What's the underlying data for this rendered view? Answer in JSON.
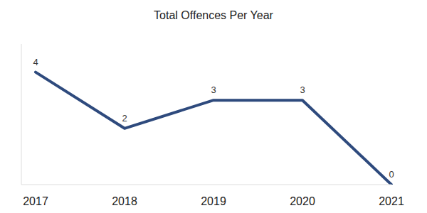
{
  "chart_data": {
    "type": "line",
    "title": "Total Offences Per Year",
    "categories": [
      "2017",
      "2018",
      "2019",
      "2020",
      "2021"
    ],
    "values": [
      4,
      2,
      3,
      3,
      0
    ],
    "color": "#2e4a7d",
    "ylim": [
      0,
      5
    ],
    "grid": false,
    "data_labels": true,
    "tick_labels": "x"
  }
}
